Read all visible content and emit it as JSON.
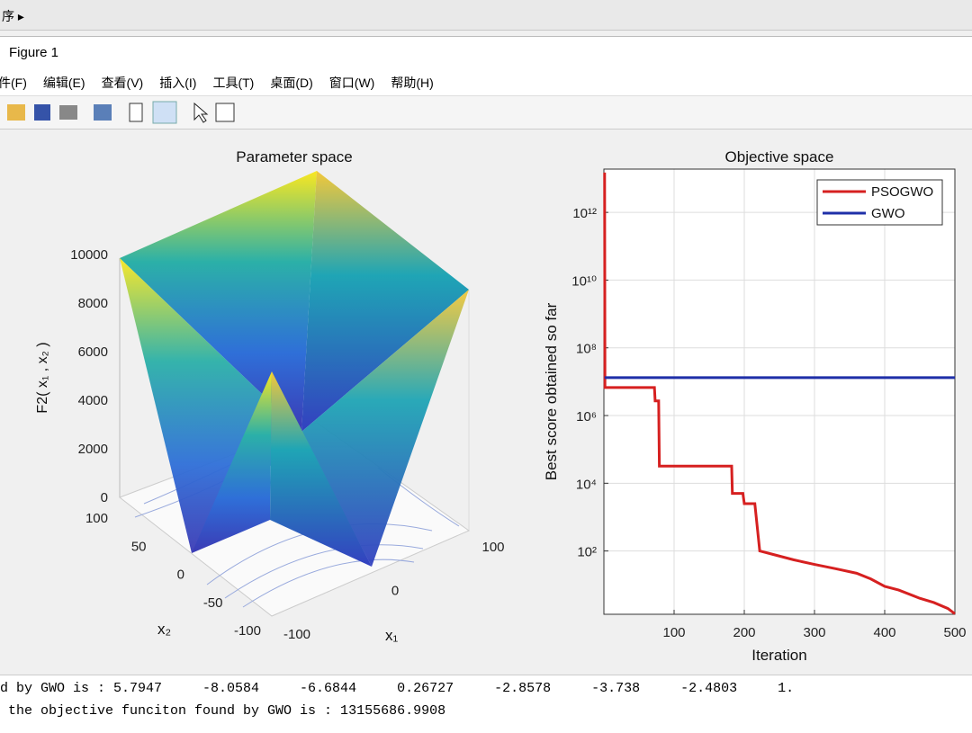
{
  "window": {
    "breadcrumb": "序",
    "title": "Figure 1",
    "menu": [
      "件(F)",
      "编辑(E)",
      "查看(V)",
      "插入(I)",
      "工具(T)",
      "桌面(D)",
      "窗口(W)",
      "帮助(H)"
    ]
  },
  "charts": [
    {
      "type": "surface3d",
      "title": "Parameter space",
      "zlabel": "F2( x₁ , x₂ )",
      "xlabel": "x₁",
      "ylabel": "x₂",
      "zlim": [
        0,
        10000
      ],
      "zticks": [
        0,
        2000,
        4000,
        6000,
        8000,
        10000
      ],
      "xlim": [
        -100,
        100
      ],
      "xticks": [
        -100,
        0,
        100
      ],
      "ylim": [
        -100,
        100
      ],
      "yticks": [
        100,
        50,
        0,
        -50,
        -100
      ]
    },
    {
      "type": "line",
      "title": "Objective space",
      "xlabel": "Iteration",
      "ylabel": "Best score obtained so far",
      "xlim": [
        0,
        500
      ],
      "xticks": [
        100,
        200,
        300,
        400,
        500
      ],
      "ylim": [
        1.35,
        19000000000000
      ],
      "log_y": true,
      "grid": true,
      "legend": "northeast",
      "yticks": [
        {
          "value": 100,
          "label": "10²"
        },
        {
          "value": 10000,
          "label": "10⁴"
        },
        {
          "value": 1000000,
          "label": "10⁶"
        },
        {
          "value": 100000000,
          "label": "10⁸"
        },
        {
          "value": 10000000000,
          "label": "10¹⁰"
        },
        {
          "value": 1000000000000,
          "label": "10¹²"
        }
      ],
      "series": [
        {
          "name": "PSOGWO",
          "color": "#d62020",
          "x": [
            1,
            1.5,
            72,
            73,
            78,
            79,
            182,
            183,
            198,
            200,
            215,
            222,
            240,
            270,
            300,
            330,
            360,
            380,
            400,
            420,
            450,
            470,
            490,
            500
          ],
          "values": [
            15000000000000,
            6700000,
            6700000,
            2700000,
            2700000,
            32000,
            32000,
            5000,
            5000,
            2500,
            2500,
            100,
            80,
            55,
            40,
            30,
            22,
            15,
            9,
            7,
            4,
            3,
            2,
            1.4
          ]
        },
        {
          "name": "GWO",
          "color": "#1f2fa8",
          "x": [
            1,
            500
          ],
          "values": [
            13155686.9908,
            13155686.9908
          ]
        }
      ]
    }
  ],
  "console": {
    "lines": [
      "d by GWO is : 5.7947     -8.0584     -6.6844     0.26727     -2.8578     -3.738     -2.4803     1.",
      " the objective funciton found by GWO is : 13155686.9908"
    ]
  }
}
